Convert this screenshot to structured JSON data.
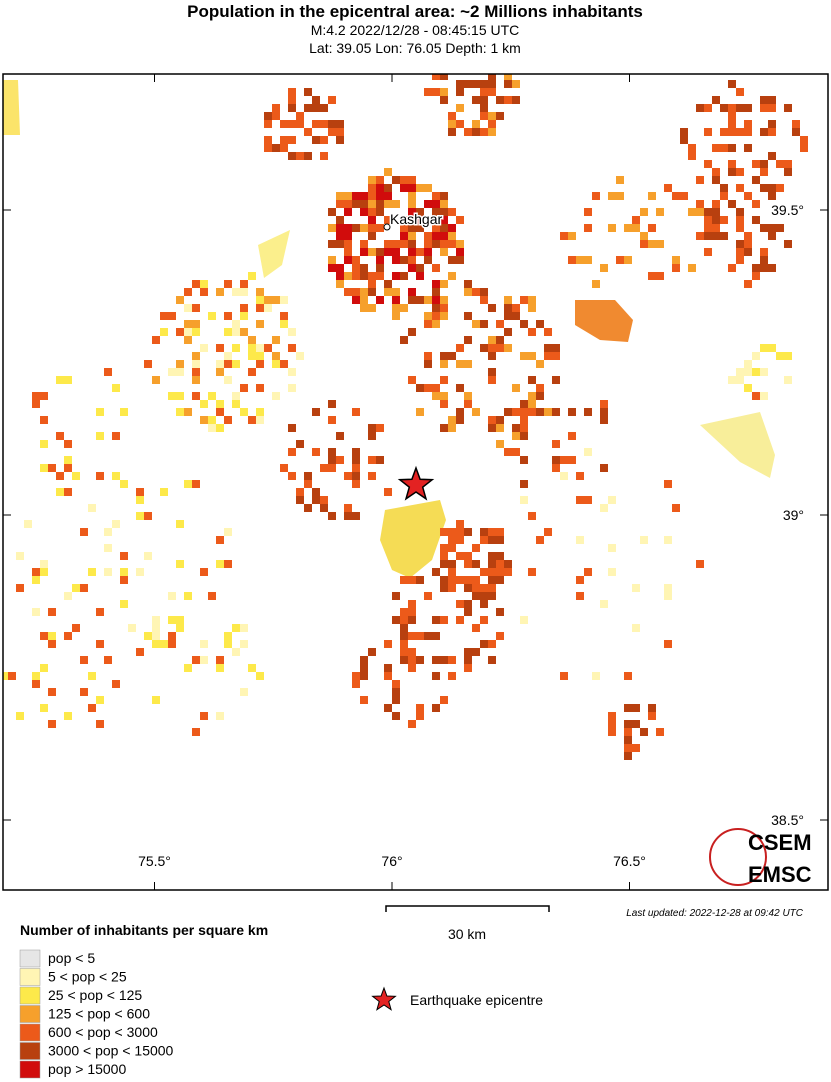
{
  "header": {
    "title": "Population in the epicentral area: ~2 Millions inhabitants",
    "line1": "M:4.2 2022/12/28 - 08:45:15 UTC",
    "line2": "Lat: 39.05 Lon: 76.05 Depth: 1 km"
  },
  "map": {
    "city": "Kashgar",
    "lat_ticks": [
      {
        "value": 39.5,
        "label": "39.5°"
      },
      {
        "value": 39,
        "label": "39°"
      },
      {
        "value": 38.5,
        "label": "38.5°"
      }
    ],
    "lon_ticks": [
      {
        "value": 75.5,
        "label": "75.5°"
      },
      {
        "value": 76,
        "label": "76°"
      },
      {
        "value": 76.5,
        "label": "76.5°"
      }
    ],
    "scale": "30 km",
    "updated": "Last updated: 2022-12-28 at 09:42 UTC",
    "logo": [
      "CSEM",
      "EMSC"
    ]
  },
  "legend": {
    "title": "Number of inhabitants per square km",
    "items": [
      {
        "label": "pop < 5",
        "color": "#e6e6e6"
      },
      {
        "label": "5 < pop < 25",
        "color": "#fff5b4"
      },
      {
        "label": "25 < pop < 125",
        "color": "#fde94a"
      },
      {
        "label": "125 < pop < 600",
        "color": "#f6a02c"
      },
      {
        "label": "600 < pop < 3000",
        "color": "#ec5a1a"
      },
      {
        "label": "3000 < pop < 15000",
        "color": "#b8400f"
      },
      {
        "label": "pop > 15000",
        "color": "#d10c0c"
      }
    ],
    "epicentre": "Earthquake epicentre"
  }
}
